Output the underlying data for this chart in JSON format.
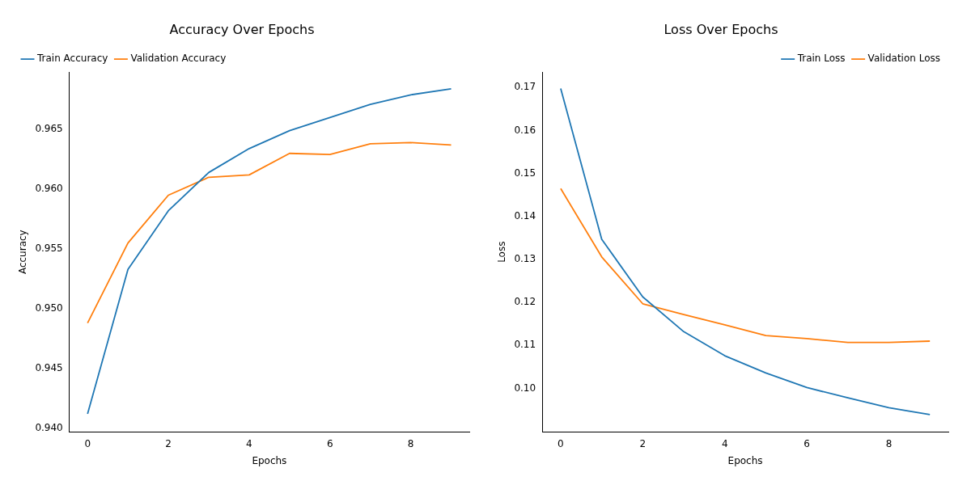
{
  "chart_data": [
    {
      "type": "line",
      "title": "Accuracy Over Epochs",
      "xlabel": "Epochs",
      "ylabel": "Accuracy",
      "x": [
        0,
        1,
        2,
        3,
        4,
        5,
        6,
        7,
        8,
        9
      ],
      "series": [
        {
          "name": "Train Accuracy",
          "color": "#1f77b4",
          "values": [
            0.9412,
            0.9533,
            0.9582,
            0.9614,
            0.9634,
            0.9649,
            0.966,
            0.9671,
            0.9679,
            0.9684
          ]
        },
        {
          "name": "Validation Accuracy",
          "color": "#ff7f0e",
          "values": [
            0.9488,
            0.9555,
            0.9595,
            0.961,
            0.9612,
            0.963,
            0.9629,
            0.9638,
            0.9639,
            0.9637
          ]
        }
      ],
      "xlim": [
        -0.45,
        9.45
      ],
      "xticks": [
        0,
        2,
        4,
        6,
        8
      ],
      "ylim": [
        0.9397,
        0.9698
      ],
      "yticks": [
        {
          "value": 0.94,
          "label": "0.940"
        },
        {
          "value": 0.945,
          "label": "0.945"
        },
        {
          "value": 0.95,
          "label": "0.950"
        },
        {
          "value": 0.955,
          "label": "0.955"
        },
        {
          "value": 0.96,
          "label": "0.960"
        },
        {
          "value": 0.965,
          "label": "0.965"
        }
      ],
      "legend": "top left",
      "grid": false,
      "marker": "none",
      "line_style": "solid"
    },
    {
      "type": "line",
      "title": "Loss Over Epochs",
      "xlabel": "Epochs",
      "ylabel": "Loss",
      "x": [
        0,
        1,
        2,
        3,
        4,
        5,
        6,
        7,
        8,
        9
      ],
      "series": [
        {
          "name": "Train Loss",
          "color": "#1f77b4",
          "values": [
            0.1698,
            0.1347,
            0.1213,
            0.1132,
            0.1076,
            0.1036,
            0.1002,
            0.0978,
            0.0955,
            0.0939
          ]
        },
        {
          "name": "Validation Loss",
          "color": "#ff7f0e",
          "values": [
            0.1465,
            0.1306,
            0.1197,
            0.1172,
            0.1148,
            0.1123,
            0.1116,
            0.1107,
            0.1107,
            0.111
          ]
        }
      ],
      "xlim": [
        -0.45,
        9.45
      ],
      "xticks": [
        0,
        2,
        4,
        6,
        8
      ],
      "ylim": [
        0.0899,
        0.1736
      ],
      "yticks": [
        {
          "value": 0.1,
          "label": "0.10"
        },
        {
          "value": 0.11,
          "label": "0.11"
        },
        {
          "value": 0.12,
          "label": "0.12"
        },
        {
          "value": 0.13,
          "label": "0.13"
        },
        {
          "value": 0.14,
          "label": "0.14"
        },
        {
          "value": 0.15,
          "label": "0.15"
        },
        {
          "value": 0.16,
          "label": "0.16"
        },
        {
          "value": 0.17,
          "label": "0.17"
        }
      ],
      "legend": "top right",
      "grid": false,
      "marker": "none",
      "line_style": "solid"
    }
  ]
}
